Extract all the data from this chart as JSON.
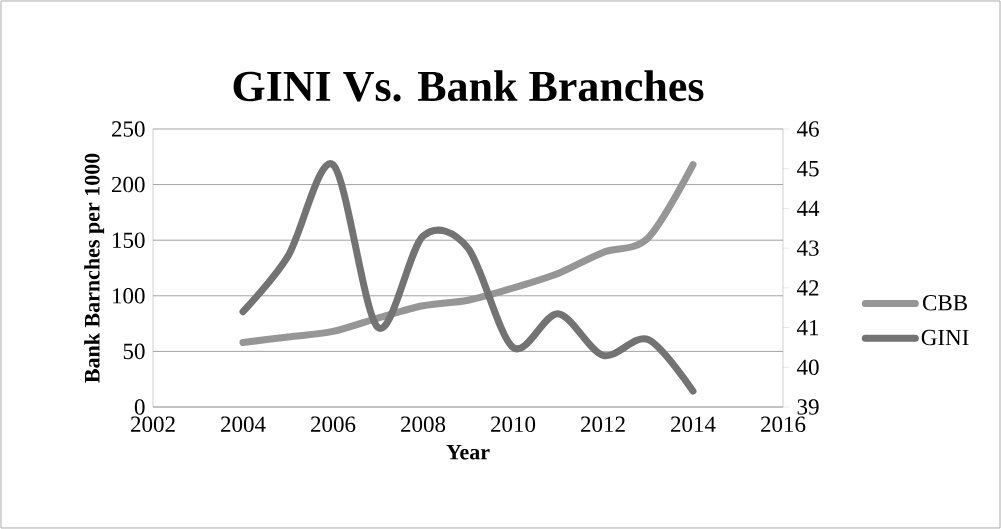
{
  "chart_data": {
    "type": "line",
    "title": "GINI Vs. Bank Branches",
    "xlabel": "Year",
    "ylabel": "Bank Barnches per 1000",
    "x": [
      2004,
      2005,
      2006,
      2007,
      2008,
      2009,
      2010,
      2011,
      2012,
      2013,
      2014
    ],
    "xlim": [
      2002,
      2016
    ],
    "xticks": [
      2002,
      2004,
      2006,
      2008,
      2010,
      2012,
      2014,
      2016
    ],
    "ylim": [
      0,
      250
    ],
    "yticks": [
      0,
      50,
      100,
      150,
      200,
      250
    ],
    "y2lim": [
      39,
      46
    ],
    "y2ticks": [
      39,
      40,
      41,
      42,
      43,
      44,
      45,
      46
    ],
    "series": [
      {
        "name": "CBB",
        "color": "#969696",
        "values": [
          58,
          63,
          68,
          80,
          91,
          96,
          107,
          120,
          139,
          152,
          218
        ]
      },
      {
        "name": "GINI",
        "color": "#737373",
        "axis": "y2",
        "values": [
          41.4,
          42.8,
          45.1,
          41.0,
          43.3,
          43.0,
          40.5,
          41.35,
          40.3,
          40.7,
          39.4
        ]
      }
    ],
    "grid": "y",
    "legend": "right"
  }
}
